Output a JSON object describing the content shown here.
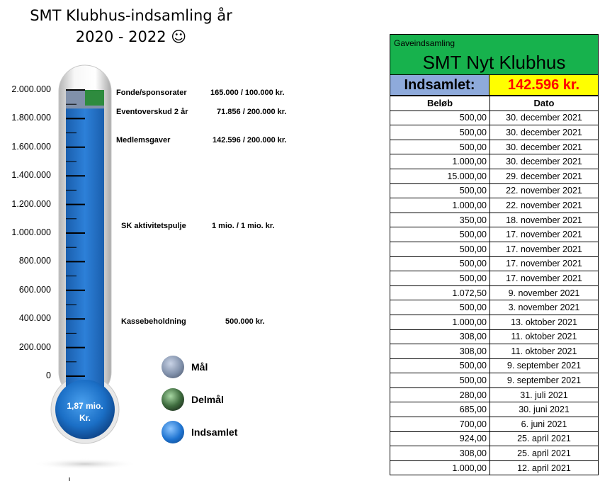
{
  "title_line1": "SMT Klubhus-indsamling år",
  "title_line2": "2020 - 2022 ☺",
  "chart_data": {
    "type": "thermometer",
    "y_ticks": [
      "2.000.000",
      "1.800.000",
      "1.600.000",
      "1.400.000",
      "1.200.000",
      "1.000.000",
      "800.000",
      "600.000",
      "400.000",
      "200.000",
      "0"
    ],
    "ylim": [
      0,
      2000000
    ],
    "goal": 2000000,
    "milestone": 2000000,
    "collected": 1870000,
    "bulb_label_line1": "1,87 mio.",
    "bulb_label_line2": "Kr.",
    "annotations": [
      {
        "label": "Fonde/sponsorater",
        "value": "165.000 / 100.000 kr."
      },
      {
        "label": "Eventoverskud 2 år",
        "value": "71.856 / 200.000 kr."
      },
      {
        "label": "Medlemsgaver",
        "value": "142.596 / 200.000 kr."
      },
      {
        "label": "SK aktivitetspulje",
        "value": "1 mio. / 1 mio. kr."
      },
      {
        "label": "Kassebeholdning",
        "value": "500.000 kr."
      }
    ],
    "legend": [
      {
        "name": "Mål",
        "color": "#8090aa"
      },
      {
        "name": "Delmål",
        "color": "#3f6d3f"
      },
      {
        "name": "Indsamlet",
        "color": "#1e73d0"
      }
    ]
  },
  "donations": {
    "subtitle": "Gaveindsamling",
    "title": "SMT Nyt Klubhus",
    "total_label": "Indsamlet:",
    "total_value": "142.596 kr.",
    "col_amount": "Beløb",
    "col_date": "Dato",
    "rows": [
      [
        "500,00",
        "30. december 2021"
      ],
      [
        "500,00",
        "30. december 2021"
      ],
      [
        "500,00",
        "30. december 2021"
      ],
      [
        "1.000,00",
        "30. december 2021"
      ],
      [
        "15.000,00",
        "29. december 2021"
      ],
      [
        "500,00",
        "22. november 2021"
      ],
      [
        "1.000,00",
        "22. november 2021"
      ],
      [
        "350,00",
        "18. november 2021"
      ],
      [
        "500,00",
        "17. november 2021"
      ],
      [
        "500,00",
        "17. november 2021"
      ],
      [
        "500,00",
        "17. november 2021"
      ],
      [
        "500,00",
        "17. november 2021"
      ],
      [
        "1.072,50",
        "9. november 2021"
      ],
      [
        "500,00",
        "3. november 2021"
      ],
      [
        "1.000,00",
        "13. oktober 2021"
      ],
      [
        "308,00",
        "11. oktober 2021"
      ],
      [
        "308,00",
        "11. oktober 2021"
      ],
      [
        "500,00",
        "9. september 2021"
      ],
      [
        "500,00",
        "9. september 2021"
      ],
      [
        "280,00",
        "31. juli 2021"
      ],
      [
        "685,00",
        "30. juni 2021"
      ],
      [
        "700,00",
        "6. juni 2021"
      ],
      [
        "924,00",
        "25. april 2021"
      ],
      [
        "308,00",
        "25. april 2021"
      ],
      [
        "1.000,00",
        "12. april 2021"
      ]
    ]
  }
}
